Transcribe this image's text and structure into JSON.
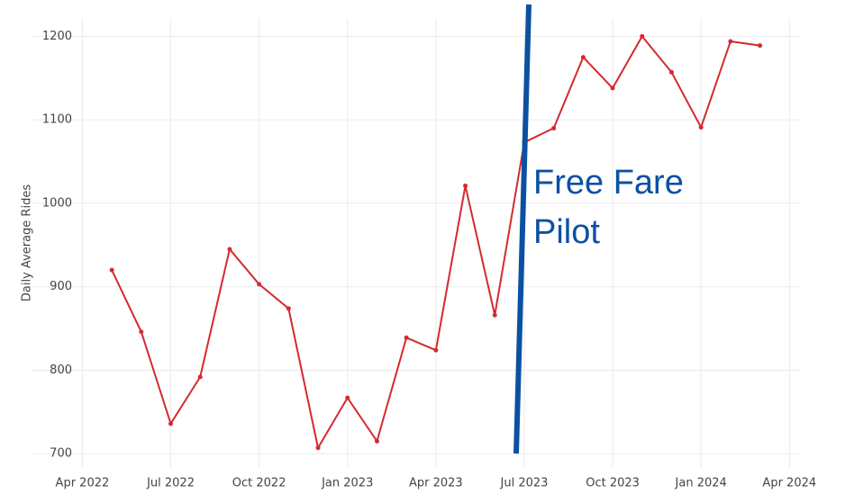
{
  "chart_data": {
    "type": "line",
    "y_label": "Daily Average Rides",
    "x": [
      "2022-05",
      "2022-06",
      "2022-07",
      "2022-08",
      "2022-09",
      "2022-10",
      "2022-11",
      "2022-12",
      "2023-01",
      "2023-02",
      "2023-03",
      "2023-04",
      "2023-05",
      "2023-06",
      "2023-07",
      "2023-08",
      "2023-09",
      "2023-10",
      "2023-11",
      "2023-12",
      "2024-01",
      "2024-02",
      "2024-03"
    ],
    "series": [
      {
        "name": "Daily Average Rides",
        "color": "#d42a2f",
        "values": [
          920,
          846,
          736,
          792,
          945,
          903,
          874,
          707,
          767,
          715,
          839,
          824,
          1021,
          866,
          1073,
          1090,
          1175,
          1138,
          1200,
          1157,
          1091,
          1194,
          1189
        ]
      }
    ],
    "xlim": [
      "2022-02",
      "2024-05"
    ],
    "xticks": [
      {
        "value": "2022-04",
        "label": "Apr 2022"
      },
      {
        "value": "2022-07",
        "label": "Jul 2022"
      },
      {
        "value": "2022-10",
        "label": "Oct 2022"
      },
      {
        "value": "2023-01",
        "label": "Jan 2023"
      },
      {
        "value": "2023-04",
        "label": "Apr 2023"
      },
      {
        "value": "2023-07",
        "label": "Jul 2023"
      },
      {
        "value": "2023-10",
        "label": "Oct 2023"
      },
      {
        "value": "2024-01",
        "label": "Jan 2024"
      },
      {
        "value": "2024-04",
        "label": "Apr 2024"
      }
    ],
    "ylim": [
      683,
      1222
    ],
    "yticks": [
      700,
      800,
      900,
      1000,
      1100,
      1200
    ],
    "grid": true,
    "annotation": [
      "Free Fare",
      "Pilot"
    ]
  }
}
